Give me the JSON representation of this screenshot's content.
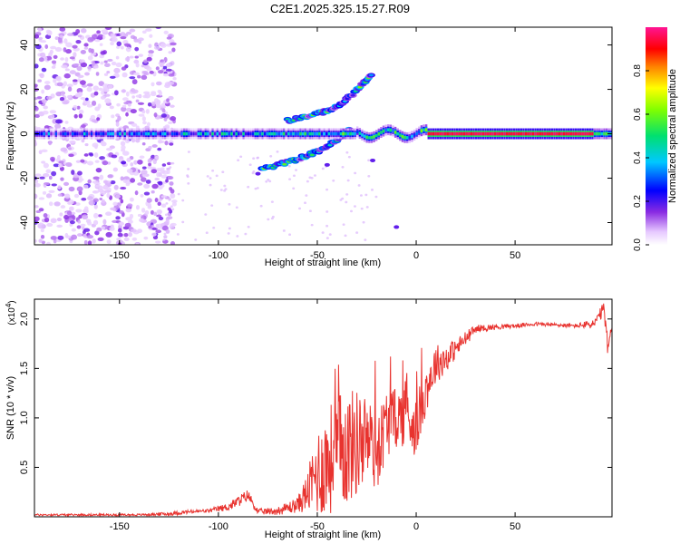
{
  "title": "C2E1.2025.325.15.27.R09",
  "chart_data": [
    {
      "type": "heatmap",
      "xlabel": "Height of straight line (km)",
      "ylabel": "Frequency (Hz)",
      "xlim": [
        -193,
        99
      ],
      "ylim": [
        -50,
        48
      ],
      "xticks": [
        -150,
        -100,
        -50,
        0,
        50
      ],
      "yticks": [
        -40,
        -20,
        0,
        20,
        40
      ],
      "colorbar": {
        "label": "Normalized spectral amplitude",
        "range": [
          0,
          1
        ],
        "ticks": [
          "0.0",
          "0.2",
          "0.4",
          "0.6",
          "0.8"
        ],
        "tick_values": [
          0.0,
          0.2,
          0.4,
          0.6,
          0.8
        ]
      },
      "features": {
        "main_line": {
          "y": 0,
          "x_range": [
            -193,
            99
          ],
          "amplitude_low_height": 0.4,
          "amplitude_high_height": 0.95
        },
        "upper_branch": [
          [
            -65,
            6
          ],
          [
            -50,
            9
          ],
          [
            -40,
            12
          ],
          [
            -32,
            18
          ],
          [
            -22,
            27
          ]
        ],
        "lower_branch": [
          [
            -78,
            -16
          ],
          [
            -62,
            -12
          ],
          [
            -50,
            -8
          ],
          [
            -40,
            -3
          ],
          [
            -33,
            3
          ]
        ],
        "noise_region": {
          "x_range": [
            -193,
            -130
          ],
          "y_range": [
            -50,
            48
          ]
        }
      }
    },
    {
      "type": "line",
      "xlabel": "Height of straight line (km)",
      "ylabel": "SNR (10 * v/v)",
      "scale_label": "(x10",
      "scale_exponent": "4",
      "scale_suffix": ")",
      "xlim": [
        -193,
        99
      ],
      "ylim": [
        0,
        2.2
      ],
      "xticks": [
        -150,
        -100,
        -50,
        0,
        50
      ],
      "yticks": [
        "0.5",
        "1.0",
        "1.5",
        "2.0"
      ],
      "ytick_values": [
        0.5,
        1.0,
        1.5,
        2.0
      ],
      "series": [
        {
          "name": "SNR",
          "color": "#e8332f",
          "x": [
            -193,
            -180,
            -160,
            -140,
            -125,
            -115,
            -105,
            -100,
            -95,
            -88,
            -85,
            -80,
            -70,
            -60,
            -55,
            -50,
            -45,
            -40,
            -35,
            -30,
            -25,
            -20,
            -15,
            -10,
            -5,
            0,
            5,
            10,
            15,
            20,
            25,
            30,
            40,
            50,
            60,
            70,
            80,
            90,
            95,
            97,
            99
          ],
          "values": [
            0.02,
            0.02,
            0.02,
            0.02,
            0.03,
            0.05,
            0.06,
            0.08,
            0.1,
            0.18,
            0.22,
            0.05,
            0.06,
            0.12,
            0.25,
            0.45,
            0.55,
            0.65,
            0.7,
            0.75,
            0.8,
            0.65,
            0.95,
            1.0,
            1.05,
            0.9,
            1.3,
            1.55,
            1.6,
            1.7,
            1.8,
            1.9,
            1.92,
            1.93,
            1.95,
            1.94,
            1.93,
            1.95,
            2.1,
            1.7,
            1.92
          ],
          "noise_amplitude": [
            0.01,
            0.01,
            0.01,
            0.01,
            0.02,
            0.02,
            0.02,
            0.03,
            0.04,
            0.06,
            0.06,
            0.03,
            0.04,
            0.08,
            0.2,
            0.45,
            0.55,
            0.6,
            0.6,
            0.55,
            0.45,
            0.4,
            0.35,
            0.3,
            0.35,
            0.3,
            0.25,
            0.2,
            0.15,
            0.1,
            0.08,
            0.04,
            0.03,
            0.02,
            0.02,
            0.02,
            0.02,
            0.05,
            0.08,
            0.1,
            0.04
          ]
        }
      ]
    }
  ]
}
